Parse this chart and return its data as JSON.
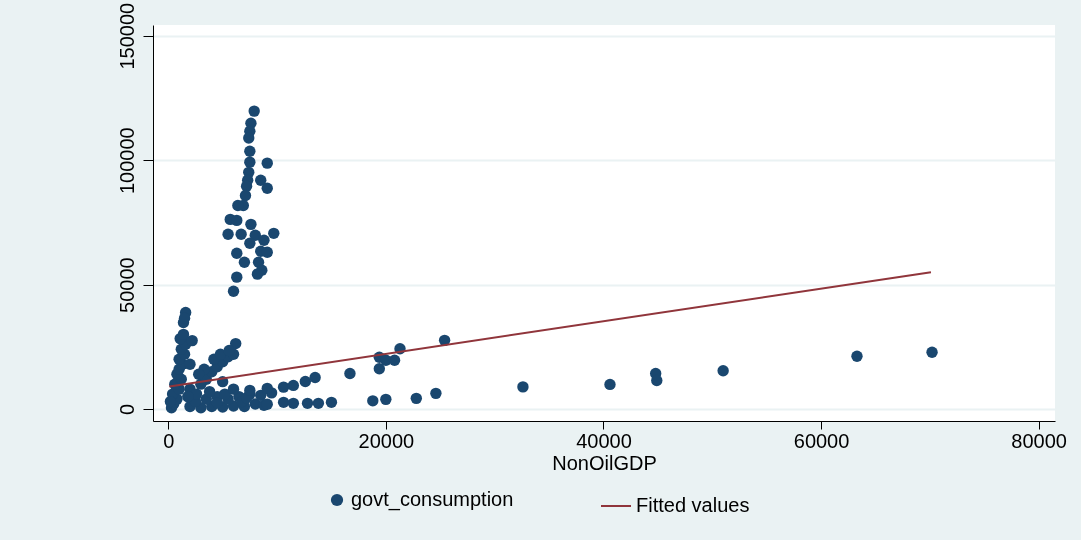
{
  "chart_data": {
    "type": "scatter",
    "xlabel": "NonOilGDP",
    "xlim": [
      -1400,
      81500
    ],
    "ylim": [
      -4800,
      154300
    ],
    "xticks": [
      0,
      20000,
      40000,
      60000,
      80000
    ],
    "yticks": [
      0,
      50000,
      100000,
      150000
    ],
    "grid": "y",
    "legend": "bottom",
    "series": [
      {
        "name": "govt_consumption",
        "type": "scatter",
        "marker": "circle",
        "color": "#1a476f",
        "x": [
          7900,
          7600,
          7500,
          7400,
          7500,
          7500,
          9100,
          7400,
          7300,
          7200,
          8500,
          9100,
          7100,
          6900,
          6400,
          5700,
          6300,
          7600,
          5500,
          6700,
          8000,
          9700,
          7500,
          8800,
          6300,
          8500,
          9100,
          7000,
          8300,
          8600,
          8200,
          6300,
          6000,
          300,
          500,
          800,
          400,
          1000,
          600,
          1200,
          800,
          1000,
          1300,
          1000,
          1500,
          1200,
          1600,
          1100,
          1400,
          2200,
          1400,
          1600,
          1500,
          200,
          2000,
          3000,
          4000,
          5000,
          6000,
          7000,
          8000,
          2500,
          3500,
          4500,
          5500,
          6500,
          7500,
          2000,
          3000,
          3500,
          4000,
          4500,
          5000,
          5500,
          6000,
          4200,
          3300,
          2800,
          4800,
          6200,
          5600,
          2000,
          2600,
          1800,
          3800,
          5200,
          6800,
          7200,
          8500,
          9500,
          8800,
          4500,
          6000,
          5000,
          9100,
          10600,
          11500,
          12800,
          13800,
          15000,
          7500,
          9100,
          10600,
          11500,
          12600,
          13500,
          16700,
          19400,
          19400,
          20000,
          20800,
          21300,
          25400,
          18800,
          20000,
          22800,
          24600,
          32600,
          40600,
          44800,
          44900,
          51000,
          63300,
          70200
        ],
        "values": [
          119700,
          114800,
          111600,
          108900,
          103600,
          99200,
          98800,
          95100,
          91900,
          89500,
          91900,
          88700,
          85800,
          81800,
          81800,
          76200,
          75800,
          74200,
          70200,
          70200,
          69800,
          70600,
          66600,
          67800,
          62600,
          63400,
          63000,
          59000,
          59000,
          55800,
          54200,
          53000,
          47300,
          500,
          2000,
          4000,
          6000,
          8000,
          10000,
          12000,
          14000,
          16000,
          18000,
          20000,
          22000,
          24000,
          26000,
          28300,
          30000,
          27500,
          34800,
          38800,
          36500,
          3000,
          1000,
          500,
          1000,
          800,
          1200,
          1000,
          2000,
          3000,
          4000,
          5000,
          4000,
          5000,
          6000,
          8000,
          10000,
          12000,
          15000,
          17000,
          19000,
          21000,
          22000,
          20000,
          16000,
          14000,
          22000,
          26300,
          23500,
          18000,
          6000,
          5000,
          7000,
          6000,
          3000,
          4500,
          5500,
          6500,
          1500,
          2500,
          8000,
          11000,
          1900,
          2700,
          2300,
          2300,
          2300,
          2700,
          7500,
          8300,
          8800,
          9500,
          11100,
          12700,
          14300,
          16200,
          20800,
          19600,
          19600,
          24200,
          27600,
          3300,
          3900,
          4300,
          6300,
          8900,
          9900,
          14300,
          11500,
          15400,
          21200,
          22800
        ]
      },
      {
        "name": "Fitted values",
        "type": "line",
        "line_style": "solid",
        "color": "#90353b",
        "x": [
          100,
          70100
        ],
        "values": [
          9100,
          55000
        ]
      }
    ]
  }
}
